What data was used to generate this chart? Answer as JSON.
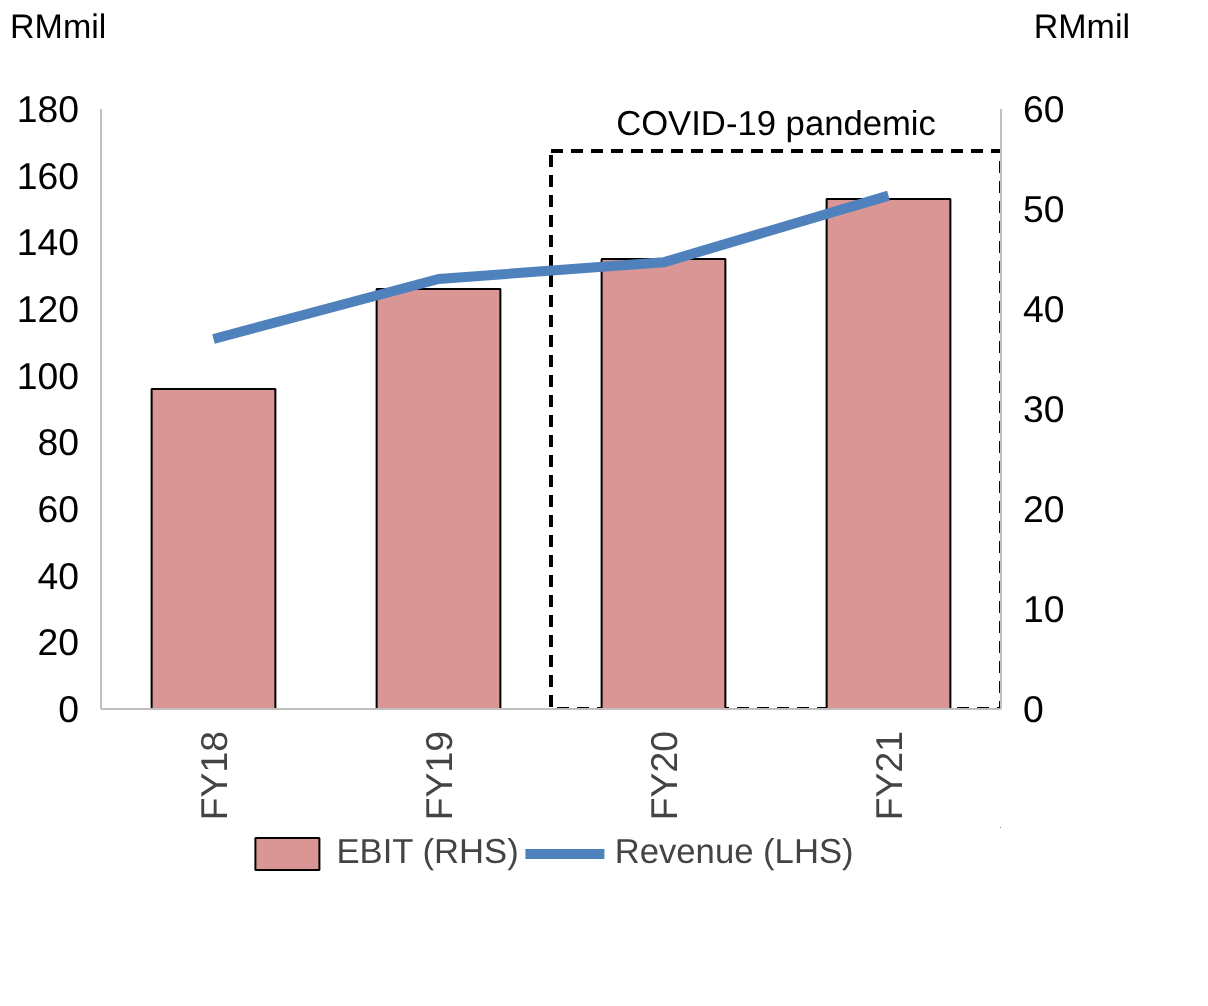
{
  "chart_data": {
    "type": "bar",
    "categories": [
      "FY18",
      "FY19",
      "FY20",
      "FY21"
    ],
    "series": [
      {
        "name": "EBIT (RHS)",
        "axis": "y2",
        "color": "#d99694",
        "values": [
          32,
          42,
          45,
          51
        ]
      },
      {
        "name": "Revenue (LHS)",
        "type": "line",
        "color": "#4f81bd",
        "values": [
          111,
          129,
          134,
          154
        ]
      }
    ],
    "ylabel": "RMmil",
    "y2label": "RMmil",
    "ylim": [
      0,
      180
    ],
    "yticks": [
      0,
      20,
      40,
      60,
      80,
      100,
      120,
      140,
      160,
      180
    ],
    "y2lim": [
      0,
      60
    ],
    "y2ticks": [
      0,
      10,
      20,
      30,
      40,
      50,
      60
    ],
    "bands": [
      {
        "axis": "x",
        "from": "FY20",
        "to": "FY21",
        "label": "COVID-19 pandemic"
      }
    ],
    "grid": false,
    "legend": "bottom"
  }
}
